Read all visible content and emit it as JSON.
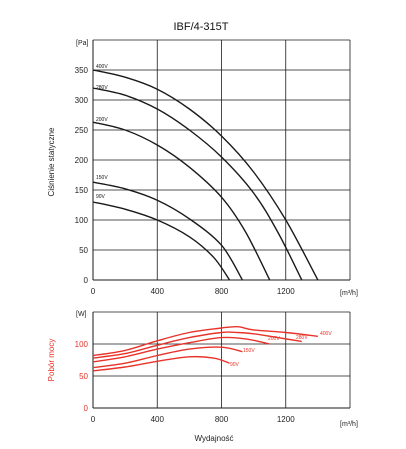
{
  "title": "IBF/4-315T",
  "colors": {
    "pressure": "#1a1a1a",
    "power": "#e8332a",
    "grid": "#1a1a1a"
  },
  "xlabel": "Wydajność",
  "chart_data": [
    {
      "type": "line",
      "title": "IBF/4-315T",
      "ylabel": "Ciśnienie statyczne",
      "yunit": "[Pa]",
      "xunit": "[m³/h]",
      "xlim": [
        0,
        1600
      ],
      "ylim": [
        0,
        400
      ],
      "xticks": [
        "0",
        "400",
        "800",
        "1200"
      ],
      "yticks": [
        "0",
        "50",
        "100",
        "150",
        "200",
        "250",
        "300",
        "350"
      ],
      "grid": true,
      "series": [
        {
          "name": "400V",
          "x": [
            0,
            200,
            400,
            600,
            800,
            1000,
            1200,
            1400
          ],
          "y": [
            350,
            338,
            318,
            285,
            240,
            180,
            100,
            0
          ]
        },
        {
          "name": "280V",
          "x": [
            0,
            200,
            400,
            600,
            800,
            1000,
            1150,
            1300
          ],
          "y": [
            320,
            308,
            285,
            250,
            205,
            145,
            80,
            0
          ]
        },
        {
          "name": "200V",
          "x": [
            0,
            200,
            400,
            600,
            800,
            950,
            1100
          ],
          "y": [
            263,
            250,
            225,
            188,
            138,
            80,
            0
          ]
        },
        {
          "name": "150V",
          "x": [
            0,
            200,
            400,
            600,
            800,
            930
          ],
          "y": [
            163,
            152,
            133,
            102,
            58,
            0
          ]
        },
        {
          "name": "90V",
          "x": [
            0,
            200,
            400,
            600,
            750,
            850
          ],
          "y": [
            130,
            118,
            100,
            72,
            38,
            0
          ]
        }
      ]
    },
    {
      "type": "line",
      "ylabel": "Pobór mocy",
      "yunit": "[W]",
      "xunit": "[m³/h]",
      "xlim": [
        0,
        1600
      ],
      "ylim": [
        0,
        150
      ],
      "xticks": [
        "0",
        "400",
        "800",
        "1200"
      ],
      "yticks": [
        "0",
        "50",
        "100"
      ],
      "grid": true,
      "series": [
        {
          "name": "400V",
          "x": [
            0,
            200,
            400,
            600,
            800,
            900,
            1000,
            1200,
            1400
          ],
          "y": [
            82,
            90,
            105,
            118,
            125,
            127,
            122,
            118,
            112
          ]
        },
        {
          "name": "280V",
          "x": [
            0,
            200,
            400,
            600,
            800,
            900,
            1000,
            1150,
            1300
          ],
          "y": [
            78,
            85,
            98,
            110,
            118,
            118,
            116,
            110,
            104
          ]
        },
        {
          "name": "200V",
          "x": [
            0,
            200,
            400,
            600,
            800,
            950,
            1100
          ],
          "y": [
            72,
            80,
            92,
            102,
            110,
            108,
            100
          ]
        },
        {
          "name": "150V",
          "x": [
            0,
            200,
            400,
            600,
            800,
            930
          ],
          "y": [
            63,
            70,
            82,
            92,
            95,
            88
          ]
        },
        {
          "name": "90V",
          "x": [
            0,
            200,
            400,
            600,
            750,
            850
          ],
          "y": [
            58,
            64,
            73,
            80,
            78,
            70
          ]
        }
      ]
    }
  ]
}
